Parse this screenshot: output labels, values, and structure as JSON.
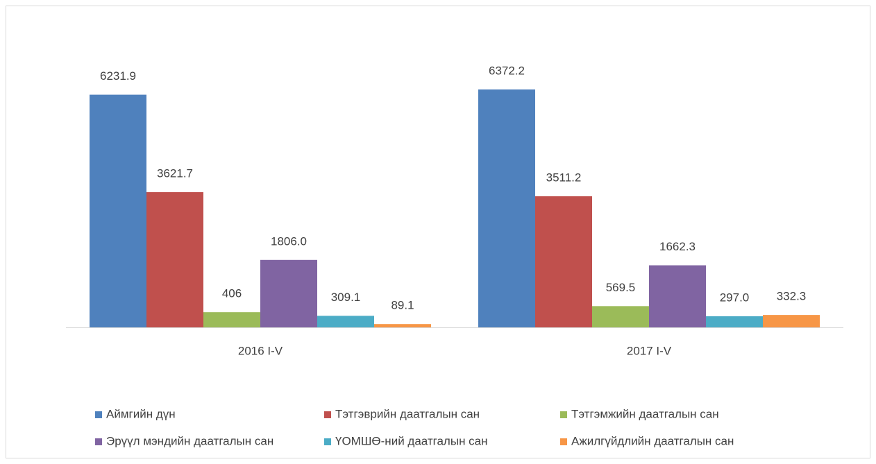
{
  "chart_data": {
    "type": "bar",
    "categories": [
      "2016 I-V",
      "2017 I-V"
    ],
    "series": [
      {
        "name": "Аймгийн дүн",
        "color": "#4f81bd",
        "values": [
          6231.9,
          6372.2
        ],
        "value_labels": [
          "6231.9",
          "6372.2"
        ]
      },
      {
        "name": "Тэтгэврийн даатгалын сан",
        "color": "#c0504d",
        "values": [
          3621.7,
          3511.2
        ],
        "value_labels": [
          "3621.7",
          "3511.2"
        ]
      },
      {
        "name": "Тэтгэмжийн даатгалын сан",
        "color": "#9bbb59",
        "values": [
          406,
          569.5
        ],
        "value_labels": [
          "406",
          "569.5"
        ]
      },
      {
        "name": "Эрүүл мэндийн даатгалын сан",
        "color": "#8064a2",
        "values": [
          1806.0,
          1662.3
        ],
        "value_labels": [
          "1806.0",
          "1662.3"
        ]
      },
      {
        "name": "ҮОМШӨ-ний даатгалын сан",
        "color": "#4bacc6",
        "values": [
          309.1,
          297.0
        ],
        "value_labels": [
          "309.1",
          "297.0"
        ]
      },
      {
        "name": "Ажилгүйдлийн даатгалын сан",
        "color": "#f79646",
        "values": [
          89.1,
          332.3
        ],
        "value_labels": [
          "89.1",
          "332.3"
        ]
      }
    ],
    "legend": "bottom"
  }
}
